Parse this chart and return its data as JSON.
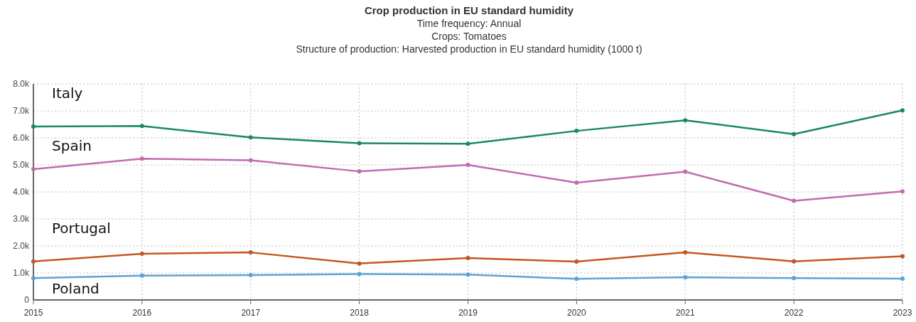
{
  "chart_data": {
    "type": "line",
    "title": "Crop production in EU standard humidity",
    "subtitle": "Time frequency: Annual\nCrops: Tomatoes\nStructure of production: Harvested production in EU standard humidity (1000 t)",
    "x": [
      2015,
      2016,
      2017,
      2018,
      2019,
      2020,
      2021,
      2022,
      2023
    ],
    "xlim": [
      2015,
      2023
    ],
    "xticks": [
      2015,
      2016,
      2017,
      2018,
      2019,
      2020,
      2021,
      2022,
      2023
    ],
    "ylim": [
      0,
      8000
    ],
    "yticks": [
      0,
      {
        "value": 1000,
        "label": "1.0k"
      },
      {
        "value": 2000,
        "label": "2.0k"
      },
      {
        "value": 3000,
        "label": "3.0k"
      },
      {
        "value": 4000,
        "label": "4.0k"
      },
      {
        "value": 5000,
        "label": "5.0k"
      },
      {
        "value": 6000,
        "label": "6.0k"
      },
      {
        "value": 7000,
        "label": "7.0k"
      },
      {
        "value": 8000,
        "label": "8.0k"
      }
    ],
    "grid": true,
    "marker": "circle",
    "line_style": "solid",
    "series": [
      {
        "name": "Italy",
        "color": "#1a8a5a",
        "values": [
          6420,
          6440,
          6020,
          5800,
          5780,
          6260,
          6650,
          6140,
          7020
        ]
      },
      {
        "name": "Spain",
        "color": "#c26bb0",
        "values": [
          4840,
          5230,
          5170,
          4760,
          5000,
          4340,
          4750,
          3670,
          4020
        ]
      },
      {
        "name": "Portugal",
        "color": "#c4561f",
        "values": [
          1430,
          1710,
          1760,
          1350,
          1550,
          1420,
          1760,
          1430,
          1620
        ]
      },
      {
        "name": "Poland",
        "color": "#5aa3d8",
        "values": [
          810,
          900,
          920,
          960,
          940,
          780,
          840,
          810,
          790
        ]
      }
    ]
  }
}
